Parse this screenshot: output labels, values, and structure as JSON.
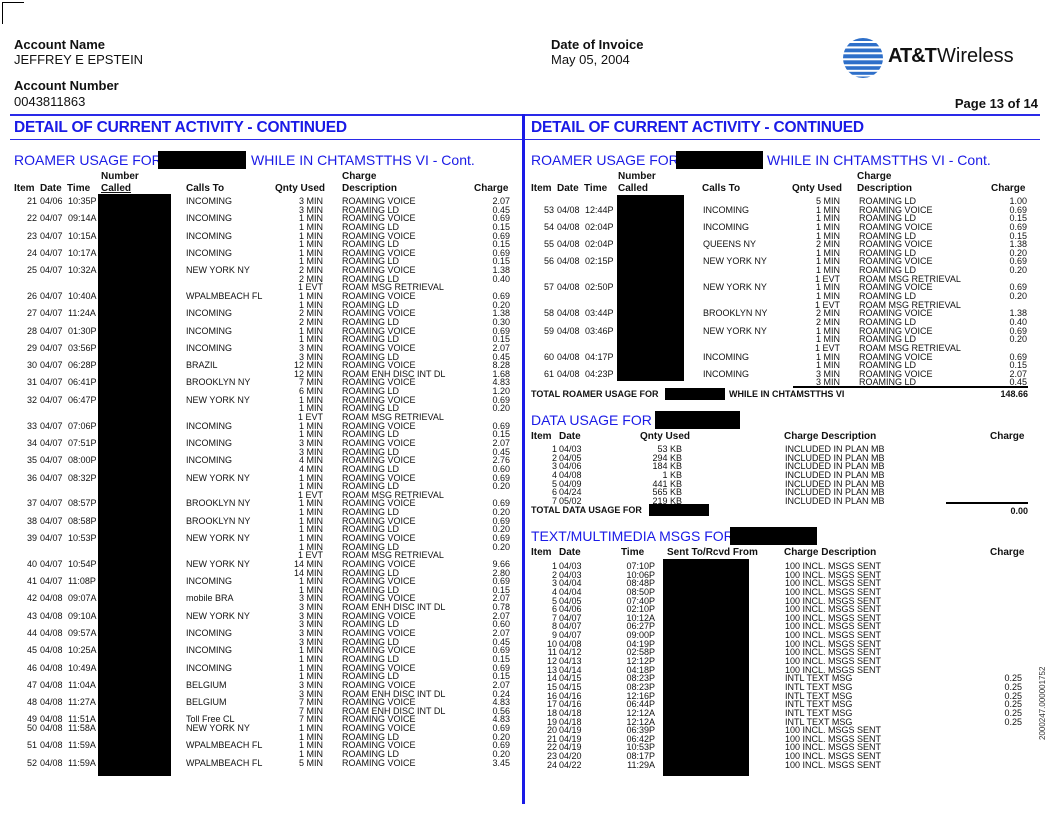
{
  "header": {
    "account_name_label": "Account Name",
    "account_name": "JEFFREY E EPSTEIN",
    "account_number_label": "Account Number",
    "account_number": "0043811863",
    "invoice_date_label": "Date of Invoice",
    "invoice_date": "May 05, 2004",
    "logo_brand": "AT&T",
    "logo_product": "Wireless",
    "page": "Page  13 of 14"
  },
  "colors": {
    "accent_blue": "#1a1ae6",
    "redaction": "#000000"
  },
  "section_title": "DETAIL OF CURRENT ACTIVITY - CONTINUED",
  "roamer": {
    "title_prefix": "ROAMER USAGE FOR",
    "title_suffix": "WHILE IN CHTAMSTTHS VI - Cont.",
    "headers": {
      "item": "Item",
      "date": "Date",
      "time": "Time",
      "number_top": "Number",
      "number_bottom": "Called",
      "calls_to": "Calls To",
      "qty": "Qnty Used",
      "desc_top": "Charge",
      "desc_bottom": "Description",
      "charge": "Charge"
    },
    "left_lines": [
      {
        "i": "21",
        "d": "04/06",
        "t": "10:35P",
        "to": "INCOMING",
        "q": "3 MIN",
        "desc": "ROAMING VOICE",
        "c": "2.07"
      },
      {
        "q": "3 MIN",
        "desc": "ROAMING LD",
        "c": "0.45"
      },
      {
        "i": "22",
        "d": "04/07",
        "t": "09:14A",
        "to": "INCOMING",
        "q": "1 MIN",
        "desc": "ROAMING VOICE",
        "c": "0.69"
      },
      {
        "q": "1 MIN",
        "desc": "ROAMING LD",
        "c": "0.15"
      },
      {
        "i": "23",
        "d": "04/07",
        "t": "10:15A",
        "to": "INCOMING",
        "q": "1 MIN",
        "desc": "ROAMING VOICE",
        "c": "0.69"
      },
      {
        "q": "1 MIN",
        "desc": "ROAMING LD",
        "c": "0.15"
      },
      {
        "i": "24",
        "d": "04/07",
        "t": "10:17A",
        "to": "INCOMING",
        "q": "1 MIN",
        "desc": "ROAMING VOICE",
        "c": "0.69"
      },
      {
        "q": "1 MIN",
        "desc": "ROAMING LD",
        "c": "0.15"
      },
      {
        "i": "25",
        "d": "04/07",
        "t": "10:32A",
        "to": "NEW YORK NY",
        "q": "2 MIN",
        "desc": "ROAMING VOICE",
        "c": "1.38"
      },
      {
        "q": "2 MIN",
        "desc": "ROAMING LD",
        "c": "0.40"
      },
      {
        "q": "1 EVT",
        "desc": "ROAM MSG RETRIEVAL"
      },
      {
        "i": "26",
        "d": "04/07",
        "t": "10:40A",
        "to": "WPALMBEACH FL",
        "q": "1 MIN",
        "desc": "ROAMING VOICE",
        "c": "0.69"
      },
      {
        "q": "1 MIN",
        "desc": "ROAMING LD",
        "c": "0.20"
      },
      {
        "i": "27",
        "d": "04/07",
        "t": "11:24A",
        "to": "INCOMING",
        "q": "2 MIN",
        "desc": "ROAMING VOICE",
        "c": "1.38"
      },
      {
        "q": "2 MIN",
        "desc": "ROAMING LD",
        "c": "0.30"
      },
      {
        "i": "28",
        "d": "04/07",
        "t": "01:30P",
        "to": "INCOMING",
        "q": "1 MIN",
        "desc": "ROAMING VOICE",
        "c": "0.69"
      },
      {
        "q": "1 MIN",
        "desc": "ROAMING LD",
        "c": "0.15"
      },
      {
        "i": "29",
        "d": "04/07",
        "t": "03:56P",
        "to": "INCOMING",
        "q": "3 MIN",
        "desc": "ROAMING VOICE",
        "c": "2.07"
      },
      {
        "q": "3 MIN",
        "desc": "ROAMING LD",
        "c": "0.45"
      },
      {
        "i": "30",
        "d": "04/07",
        "t": "06:28P",
        "to": "BRAZIL",
        "q": "12 MIN",
        "desc": "ROAMING VOICE",
        "c": "8.28"
      },
      {
        "q": "12 MIN",
        "desc": "ROAM ENH DISC INT DL",
        "c": "1.68"
      },
      {
        "i": "31",
        "d": "04/07",
        "t": "06:41P",
        "to": "BROOKLYN NY",
        "q": "7 MIN",
        "desc": "ROAMING VOICE",
        "c": "4.83"
      },
      {
        "q": "6 MIN",
        "desc": "ROAMING LD",
        "c": "1.20"
      },
      {
        "i": "32",
        "d": "04/07",
        "t": "06:47P",
        "to": "NEW YORK NY",
        "q": "1 MIN",
        "desc": "ROAMING VOICE",
        "c": "0.69"
      },
      {
        "q": "1 MIN",
        "desc": "ROAMING LD",
        "c": "0.20"
      },
      {
        "q": "1 EVT",
        "desc": "ROAM MSG RETRIEVAL"
      },
      {
        "i": "33",
        "d": "04/07",
        "t": "07:06P",
        "to": "INCOMING",
        "q": "1 MIN",
        "desc": "ROAMING VOICE",
        "c": "0.69"
      },
      {
        "q": "1 MIN",
        "desc": "ROAMING LD",
        "c": "0.15"
      },
      {
        "i": "34",
        "d": "04/07",
        "t": "07:51P",
        "to": "INCOMING",
        "q": "3 MIN",
        "desc": "ROAMING VOICE",
        "c": "2.07"
      },
      {
        "q": "3 MIN",
        "desc": "ROAMING LD",
        "c": "0.45"
      },
      {
        "i": "35",
        "d": "04/07",
        "t": "08:00P",
        "to": "INCOMING",
        "q": "4 MIN",
        "desc": "ROAMING VOICE",
        "c": "2.76"
      },
      {
        "q": "4 MIN",
        "desc": "ROAMING LD",
        "c": "0.60"
      },
      {
        "i": "36",
        "d": "04/07",
        "t": "08:32P",
        "to": "NEW YORK NY",
        "q": "1 MIN",
        "desc": "ROAMING VOICE",
        "c": "0.69"
      },
      {
        "q": "1 MIN",
        "desc": "ROAMING LD",
        "c": "0.20"
      },
      {
        "q": "1 EVT",
        "desc": "ROAM MSG RETRIEVAL"
      },
      {
        "i": "37",
        "d": "04/07",
        "t": "08:57P",
        "to": "BROOKLYN NY",
        "q": "1 MIN",
        "desc": "ROAMING VOICE",
        "c": "0.69"
      },
      {
        "q": "1 MIN",
        "desc": "ROAMING LD",
        "c": "0.20"
      },
      {
        "i": "38",
        "d": "04/07",
        "t": "08:58P",
        "to": "BROOKLYN NY",
        "q": "1 MIN",
        "desc": "ROAMING VOICE",
        "c": "0.69"
      },
      {
        "q": "1 MIN",
        "desc": "ROAMING LD",
        "c": "0.20"
      },
      {
        "i": "39",
        "d": "04/07",
        "t": "10:53P",
        "to": "NEW YORK NY",
        "q": "1 MIN",
        "desc": "ROAMING VOICE",
        "c": "0.69"
      },
      {
        "q": "1 MIN",
        "desc": "ROAMING LD",
        "c": "0.20"
      },
      {
        "q": "1 EVT",
        "desc": "ROAM MSG RETRIEVAL"
      },
      {
        "i": "40",
        "d": "04/07",
        "t": "10:54P",
        "to": "NEW YORK NY",
        "q": "14 MIN",
        "desc": "ROAMING VOICE",
        "c": "9.66"
      },
      {
        "q": "14 MIN",
        "desc": "ROAMING LD",
        "c": "2.80"
      },
      {
        "i": "41",
        "d": "04/07",
        "t": "11:08P",
        "to": "INCOMING",
        "q": "1 MIN",
        "desc": "ROAMING VOICE",
        "c": "0.69"
      },
      {
        "q": "1 MIN",
        "desc": "ROAMING LD",
        "c": "0.15"
      },
      {
        "i": "42",
        "d": "04/08",
        "t": "09:07A",
        "to": "mobile BRA",
        "q": "3 MIN",
        "desc": "ROAMING VOICE",
        "c": "2.07"
      },
      {
        "q": "3 MIN",
        "desc": "ROAM ENH DISC INT DL",
        "c": "0.78"
      },
      {
        "i": "43",
        "d": "04/08",
        "t": "09:10A",
        "to": "NEW YORK NY",
        "q": "3 MIN",
        "desc": "ROAMING VOICE",
        "c": "2.07"
      },
      {
        "q": "3 MIN",
        "desc": "ROAMING LD",
        "c": "0.60"
      },
      {
        "i": "44",
        "d": "04/08",
        "t": "09:57A",
        "to": "INCOMING",
        "q": "3 MIN",
        "desc": "ROAMING VOICE",
        "c": "2.07"
      },
      {
        "q": "3 MIN",
        "desc": "ROAMING LD",
        "c": "0.45"
      },
      {
        "i": "45",
        "d": "04/08",
        "t": "10:25A",
        "to": "INCOMING",
        "q": "1 MIN",
        "desc": "ROAMING VOICE",
        "c": "0.69"
      },
      {
        "q": "1 MIN",
        "desc": "ROAMING LD",
        "c": "0.15"
      },
      {
        "i": "46",
        "d": "04/08",
        "t": "10:49A",
        "to": "INCOMING",
        "q": "1 MIN",
        "desc": "ROAMING VOICE",
        "c": "0.69"
      },
      {
        "q": "1 MIN",
        "desc": "ROAMING LD",
        "c": "0.15"
      },
      {
        "i": "47",
        "d": "04/08",
        "t": "11:04A",
        "to": "BELGIUM",
        "q": "3 MIN",
        "desc": "ROAMING VOICE",
        "c": "2.07"
      },
      {
        "q": "3 MIN",
        "desc": "ROAM ENH DISC INT DL",
        "c": "0.24"
      },
      {
        "i": "48",
        "d": "04/08",
        "t": "11:27A",
        "to": "BELGIUM",
        "q": "7 MIN",
        "desc": "ROAMING VOICE",
        "c": "4.83"
      },
      {
        "q": "7 MIN",
        "desc": "ROAM ENH DISC INT DL",
        "c": "0.56"
      },
      {
        "i": "49",
        "d": "04/08",
        "t": "11:51A",
        "to": "Toll Free CL",
        "q": "7 MIN",
        "desc": "ROAMING VOICE",
        "c": "4.83"
      },
      {
        "i": "50",
        "d": "04/08",
        "t": "11:58A",
        "to": "NEW YORK NY",
        "q": "1 MIN",
        "desc": "ROAMING VOICE",
        "c": "0.69"
      },
      {
        "q": "1 MIN",
        "desc": "ROAMING LD",
        "c": "0.20"
      },
      {
        "i": "51",
        "d": "04/08",
        "t": "11:59A",
        "to": "WPALMBEACH FL",
        "q": "1 MIN",
        "desc": "ROAMING VOICE",
        "c": "0.69"
      },
      {
        "q": "1 MIN",
        "desc": "ROAMING LD",
        "c": "0.20"
      },
      {
        "i": "52",
        "d": "04/08",
        "t": "11:59A",
        "to": "WPALMBEACH FL",
        "q": "5 MIN",
        "desc": "ROAMING VOICE",
        "c": "3.45"
      }
    ],
    "right_lines": [
      {
        "q": "5 MIN",
        "desc": "ROAMING LD",
        "c": "1.00"
      },
      {
        "i": "53",
        "d": "04/08",
        "t": "12:44P",
        "to": "INCOMING",
        "q": "1 MIN",
        "desc": "ROAMING VOICE",
        "c": "0.69"
      },
      {
        "q": "1 MIN",
        "desc": "ROAMING LD",
        "c": "0.15"
      },
      {
        "i": "54",
        "d": "04/08",
        "t": "02:04P",
        "to": "INCOMING",
        "q": "1 MIN",
        "desc": "ROAMING VOICE",
        "c": "0.69"
      },
      {
        "q": "1 MIN",
        "desc": "ROAMING LD",
        "c": "0.15"
      },
      {
        "i": "55",
        "d": "04/08",
        "t": "02:04P",
        "to": "QUEENS NY",
        "q": "2 MIN",
        "desc": "ROAMING VOICE",
        "c": "1.38"
      },
      {
        "q": "1 MIN",
        "desc": "ROAMING LD",
        "c": "0.20"
      },
      {
        "i": "56",
        "d": "04/08",
        "t": "02:15P",
        "to": "NEW YORK NY",
        "q": "1 MIN",
        "desc": "ROAMING VOICE",
        "c": "0.69"
      },
      {
        "q": "1 MIN",
        "desc": "ROAMING LD",
        "c": "0.20"
      },
      {
        "q": "1 EVT",
        "desc": "ROAM MSG RETRIEVAL"
      },
      {
        "i": "57",
        "d": "04/08",
        "t": "02:50P",
        "to": "NEW YORK NY",
        "q": "1 MIN",
        "desc": "ROAMING VOICE",
        "c": "0.69"
      },
      {
        "q": "1 MIN",
        "desc": "ROAMING LD",
        "c": "0.20"
      },
      {
        "q": "1 EVT",
        "desc": "ROAM MSG RETRIEVAL"
      },
      {
        "i": "58",
        "d": "04/08",
        "t": "03:44P",
        "to": "BROOKLYN NY",
        "q": "2 MIN",
        "desc": "ROAMING VOICE",
        "c": "1.38"
      },
      {
        "q": "2 MIN",
        "desc": "ROAMING LD",
        "c": "0.40"
      },
      {
        "i": "59",
        "d": "04/08",
        "t": "03:46P",
        "to": "NEW YORK NY",
        "q": "1 MIN",
        "desc": "ROAMING VOICE",
        "c": "0.69"
      },
      {
        "q": "1 MIN",
        "desc": "ROAMING LD",
        "c": "0.20"
      },
      {
        "q": "1 EVT",
        "desc": "ROAM MSG RETRIEVAL"
      },
      {
        "i": "60",
        "d": "04/08",
        "t": "04:17P",
        "to": "INCOMING",
        "q": "1 MIN",
        "desc": "ROAMING VOICE",
        "c": "0.69"
      },
      {
        "q": "1 MIN",
        "desc": "ROAMING LD",
        "c": "0.15"
      },
      {
        "i": "61",
        "d": "04/08",
        "t": "04:23P",
        "to": "INCOMING",
        "q": "3 MIN",
        "desc": "ROAMING VOICE",
        "c": "2.07"
      },
      {
        "q": "3 MIN",
        "desc": "ROAMING LD",
        "c": "0.45"
      }
    ],
    "total_prefix": "TOTAL ROAMER USAGE FOR",
    "total_suffix": "WHILE IN CHTAMSTTHS VI",
    "total": "148.66"
  },
  "data_usage": {
    "title": "DATA USAGE FOR",
    "headers": {
      "item": "Item",
      "date": "Date",
      "qty": "Qnty Used",
      "desc": "Charge Description",
      "charge": "Charge"
    },
    "rows": [
      {
        "i": "1",
        "d": "04/03",
        "q": "53 KB",
        "desc": "INCLUDED IN PLAN MB"
      },
      {
        "i": "2",
        "d": "04/05",
        "q": "294 KB",
        "desc": "INCLUDED IN PLAN MB"
      },
      {
        "i": "3",
        "d": "04/06",
        "q": "184 KB",
        "desc": "INCLUDED IN PLAN MB"
      },
      {
        "i": "4",
        "d": "04/08",
        "q": "1 KB",
        "desc": "INCLUDED IN PLAN MB"
      },
      {
        "i": "5",
        "d": "04/09",
        "q": "441 KB",
        "desc": "INCLUDED IN PLAN MB"
      },
      {
        "i": "6",
        "d": "04/24",
        "q": "565 KB",
        "desc": "INCLUDED IN PLAN MB"
      },
      {
        "i": "7",
        "d": "05/02",
        "q": "219 KB",
        "desc": "INCLUDED IN PLAN MB"
      }
    ],
    "total_label": "TOTAL DATA USAGE FOR",
    "total": "0.00"
  },
  "messages": {
    "title": "TEXT/MULTIMEDIA MSGS FOR",
    "headers": {
      "item": "Item",
      "date": "Date",
      "time": "Time",
      "sent_to": "Sent To/Rcvd From",
      "desc": "Charge Description",
      "charge": "Charge"
    },
    "rows": [
      {
        "i": "1",
        "d": "04/03",
        "t": "07:10P",
        "desc": "100 INCL. MSGS SENT"
      },
      {
        "i": "2",
        "d": "04/03",
        "t": "10:06P",
        "desc": "100 INCL. MSGS SENT"
      },
      {
        "i": "3",
        "d": "04/04",
        "t": "08:48P",
        "desc": "100 INCL. MSGS SENT"
      },
      {
        "i": "4",
        "d": "04/04",
        "t": "08:50P",
        "desc": "100 INCL. MSGS SENT"
      },
      {
        "i": "5",
        "d": "04/05",
        "t": "07:40P",
        "desc": "100 INCL. MSGS SENT"
      },
      {
        "i": "6",
        "d": "04/06",
        "t": "02:10P",
        "desc": "100 INCL. MSGS SENT"
      },
      {
        "i": "7",
        "d": "04/07",
        "t": "10:12A",
        "desc": "100 INCL. MSGS SENT"
      },
      {
        "i": "8",
        "d": "04/07",
        "t": "06:27P",
        "desc": "100 INCL. MSGS SENT"
      },
      {
        "i": "9",
        "d": "04/07",
        "t": "09:00P",
        "desc": "100 INCL. MSGS SENT"
      },
      {
        "i": "10",
        "d": "04/08",
        "t": "04:19P",
        "desc": "100 INCL. MSGS SENT"
      },
      {
        "i": "11",
        "d": "04/12",
        "t": "02:58P",
        "desc": "100 INCL. MSGS SENT"
      },
      {
        "i": "12",
        "d": "04/13",
        "t": "12:12P",
        "desc": "100 INCL. MSGS SENT"
      },
      {
        "i": "13",
        "d": "04/14",
        "t": "04:18P",
        "desc": "100 INCL. MSGS SENT"
      },
      {
        "i": "14",
        "d": "04/15",
        "t": "08:23P",
        "desc": "INTL TEXT MSG",
        "c": "0.25"
      },
      {
        "i": "15",
        "d": "04/15",
        "t": "08:23P",
        "desc": "INTL TEXT MSG",
        "c": "0.25"
      },
      {
        "i": "16",
        "d": "04/16",
        "t": "12:16P",
        "desc": "INTL TEXT MSG",
        "c": "0.25"
      },
      {
        "i": "17",
        "d": "04/16",
        "t": "06:44P",
        "desc": "INTL TEXT MSG",
        "c": "0.25"
      },
      {
        "i": "18",
        "d": "04/18",
        "t": "12:12A",
        "desc": "INTL TEXT MSG",
        "c": "0.25"
      },
      {
        "i": "19",
        "d": "04/18",
        "t": "12:12A",
        "desc": "INTL TEXT MSG",
        "c": "0.25"
      },
      {
        "i": "20",
        "d": "04/19",
        "t": "06:39P",
        "desc": "100 INCL. MSGS SENT"
      },
      {
        "i": "21",
        "d": "04/19",
        "t": "06:42P",
        "desc": "100 INCL. MSGS SENT"
      },
      {
        "i": "22",
        "d": "04/19",
        "t": "10:53P",
        "desc": "100 INCL. MSGS SENT"
      },
      {
        "i": "23",
        "d": "04/20",
        "t": "08:17P",
        "desc": "100 INCL. MSGS SENT"
      },
      {
        "i": "24",
        "d": "04/22",
        "t": "11:29A",
        "desc": "100 INCL. MSGS SENT"
      }
    ]
  },
  "side_code": "2000247.000001752"
}
